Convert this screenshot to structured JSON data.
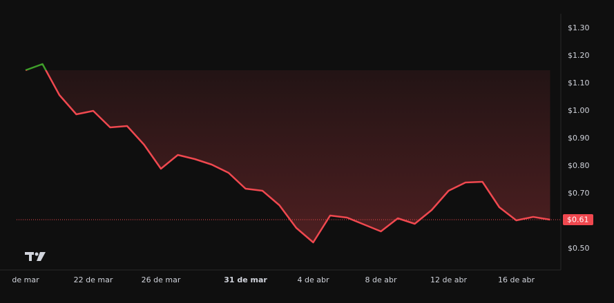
{
  "chart_data": {
    "type": "baseline-line",
    "categories": [
      "de mar",
      null,
      null,
      null,
      "22 de mar",
      null,
      null,
      null,
      "26 de mar",
      null,
      null,
      null,
      null,
      "31 de mar",
      null,
      null,
      null,
      "4 de abr",
      null,
      null,
      null,
      "8 de abr",
      null,
      null,
      null,
      "12 de abr",
      null,
      null,
      null,
      "16 de abr",
      null,
      null
    ],
    "bold_categories": [
      "31 de mar"
    ],
    "values": [
      1.1475,
      1.17,
      1.0575,
      0.9875,
      1.0,
      0.94,
      0.945,
      0.8775,
      0.79,
      0.84,
      0.825,
      0.805,
      0.775,
      0.7175,
      0.71,
      0.6575,
      0.575,
      0.5225,
      0.62,
      0.6125,
      0.5875,
      0.5625,
      0.61,
      0.59,
      0.64,
      0.71,
      0.74,
      0.7425,
      0.65,
      0.6025,
      0.615,
      0.605
    ],
    "up_color": "#3f9f2a",
    "down_color": "#f0484f",
    "ylim": [
      0.4225,
      1.3525
    ],
    "yticks": [
      {
        "value": 0.5,
        "label": "$0.50"
      },
      {
        "value": 0.7,
        "label": "$0.70"
      },
      {
        "value": 0.8,
        "label": "$0.80"
      },
      {
        "value": 0.9,
        "label": "$0.90"
      },
      {
        "value": 1.0,
        "label": "$1.00"
      },
      {
        "value": 1.1,
        "label": "$1.10"
      },
      {
        "value": 1.2,
        "label": "$1.20"
      },
      {
        "value": 1.3,
        "label": "$1.30"
      }
    ],
    "last_price_label": "$0.61"
  }
}
